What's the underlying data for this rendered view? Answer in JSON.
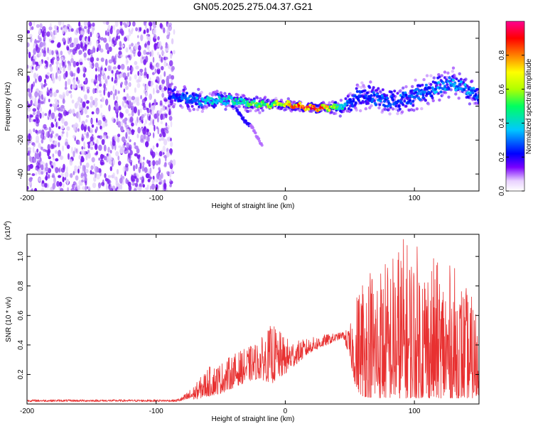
{
  "title": "GN05.2025.275.04.37.G21",
  "chart_data": [
    {
      "type": "heatmap",
      "name": "spectrogram",
      "xlabel": "Height of straight line (km)",
      "ylabel": "Frequency (Hz)",
      "xlim": [
        -200,
        150
      ],
      "ylim": [
        -50,
        50
      ],
      "xticks": [
        -200,
        -100,
        0,
        100
      ],
      "yticks": [
        -40,
        -20,
        0,
        20,
        40
      ],
      "colorbar": {
        "label": "Normalized spectral amplitude",
        "range": [
          0,
          1
        ],
        "ticks": [
          "0.0",
          "0.2",
          "0.4",
          "0.6",
          "0.8"
        ],
        "tick_values": [
          0.0,
          0.2,
          0.4,
          0.6,
          0.8
        ],
        "colormap": [
          "#ffffff",
          "#7a00ff",
          "#0000ff",
          "#00d0ff",
          "#00ff60",
          "#b0ff00",
          "#ffff00",
          "#ff8000",
          "#ff0000",
          "#ff00a0"
        ]
      },
      "noise_region_x": [
        -200,
        -86
      ],
      "ridge": {
        "x": [
          -90,
          -80,
          -70,
          -60,
          -50,
          -40,
          -30,
          -20,
          -10,
          0,
          10,
          20,
          30,
          40,
          50,
          60,
          70,
          80,
          90,
          100,
          110,
          120,
          130,
          140,
          150
        ],
        "freq": [
          6,
          5,
          4,
          3,
          4,
          3,
          2,
          1,
          1,
          1,
          0,
          -1,
          -1,
          -1,
          2,
          7,
          5,
          3,
          4,
          6,
          9,
          11,
          14,
          10,
          6
        ],
        "amplitude": [
          0.25,
          0.3,
          0.35,
          0.4,
          0.4,
          0.45,
          0.5,
          0.55,
          0.6,
          0.75,
          0.85,
          0.95,
          0.8,
          0.55,
          0.3,
          0.25,
          0.3,
          0.3,
          0.3,
          0.3,
          0.3,
          0.35,
          0.35,
          0.35,
          0.3
        ],
        "width": [
          6,
          6,
          6,
          5,
          5,
          5,
          4,
          4,
          3,
          3,
          3,
          3,
          3,
          4,
          6,
          9,
          9,
          8,
          8,
          8,
          8,
          8,
          8,
          7,
          6
        ]
      },
      "branch": {
        "x": [
          -38,
          -34,
          -30,
          -26,
          -22,
          -18
        ],
        "freq": [
          -2,
          -6,
          -10,
          -12,
          -18,
          -23
        ]
      }
    },
    {
      "type": "line",
      "name": "snr",
      "xlabel": "Height of straight line (km)",
      "ylabel": "SNR (10 * v/v)",
      "multiplier_label": "(x10",
      "multiplier_exp": "4",
      "multiplier_close": ")",
      "xlim": [
        -200,
        150
      ],
      "ylim": [
        0,
        11500
      ],
      "xticks": [
        -200,
        -100,
        0,
        100
      ],
      "yticks": [
        2000,
        4000,
        6000,
        8000,
        10000
      ],
      "ytick_labels": [
        "0.2",
        "0.4",
        "0.6",
        "0.8",
        "1.0"
      ],
      "color": "#e83030",
      "envelope": {
        "x": [
          -200,
          -150,
          -100,
          -85,
          -80,
          -70,
          -60,
          -50,
          -40,
          -30,
          -20,
          -10,
          0,
          10,
          20,
          30,
          40,
          45,
          50,
          55,
          60,
          70,
          80,
          90,
          100,
          110,
          120,
          130,
          140,
          150
        ],
        "base": [
          150,
          150,
          150,
          150,
          200,
          300,
          500,
          700,
          1100,
          1500,
          1700,
          1400,
          2000,
          2800,
          3500,
          3900,
          4300,
          4500,
          3000,
          1000,
          500,
          400,
          400,
          400,
          400,
          400,
          400,
          400,
          400,
          400
        ],
        "peak": [
          300,
          300,
          300,
          300,
          500,
          1300,
          2500,
          2800,
          3400,
          3800,
          4300,
          5500,
          4500,
          4300,
          4500,
          4700,
          4800,
          4900,
          5200,
          7500,
          9500,
          10000,
          10000,
          11500,
          11000,
          10500,
          9500,
          9500,
          8000,
          6500
        ]
      }
    }
  ]
}
